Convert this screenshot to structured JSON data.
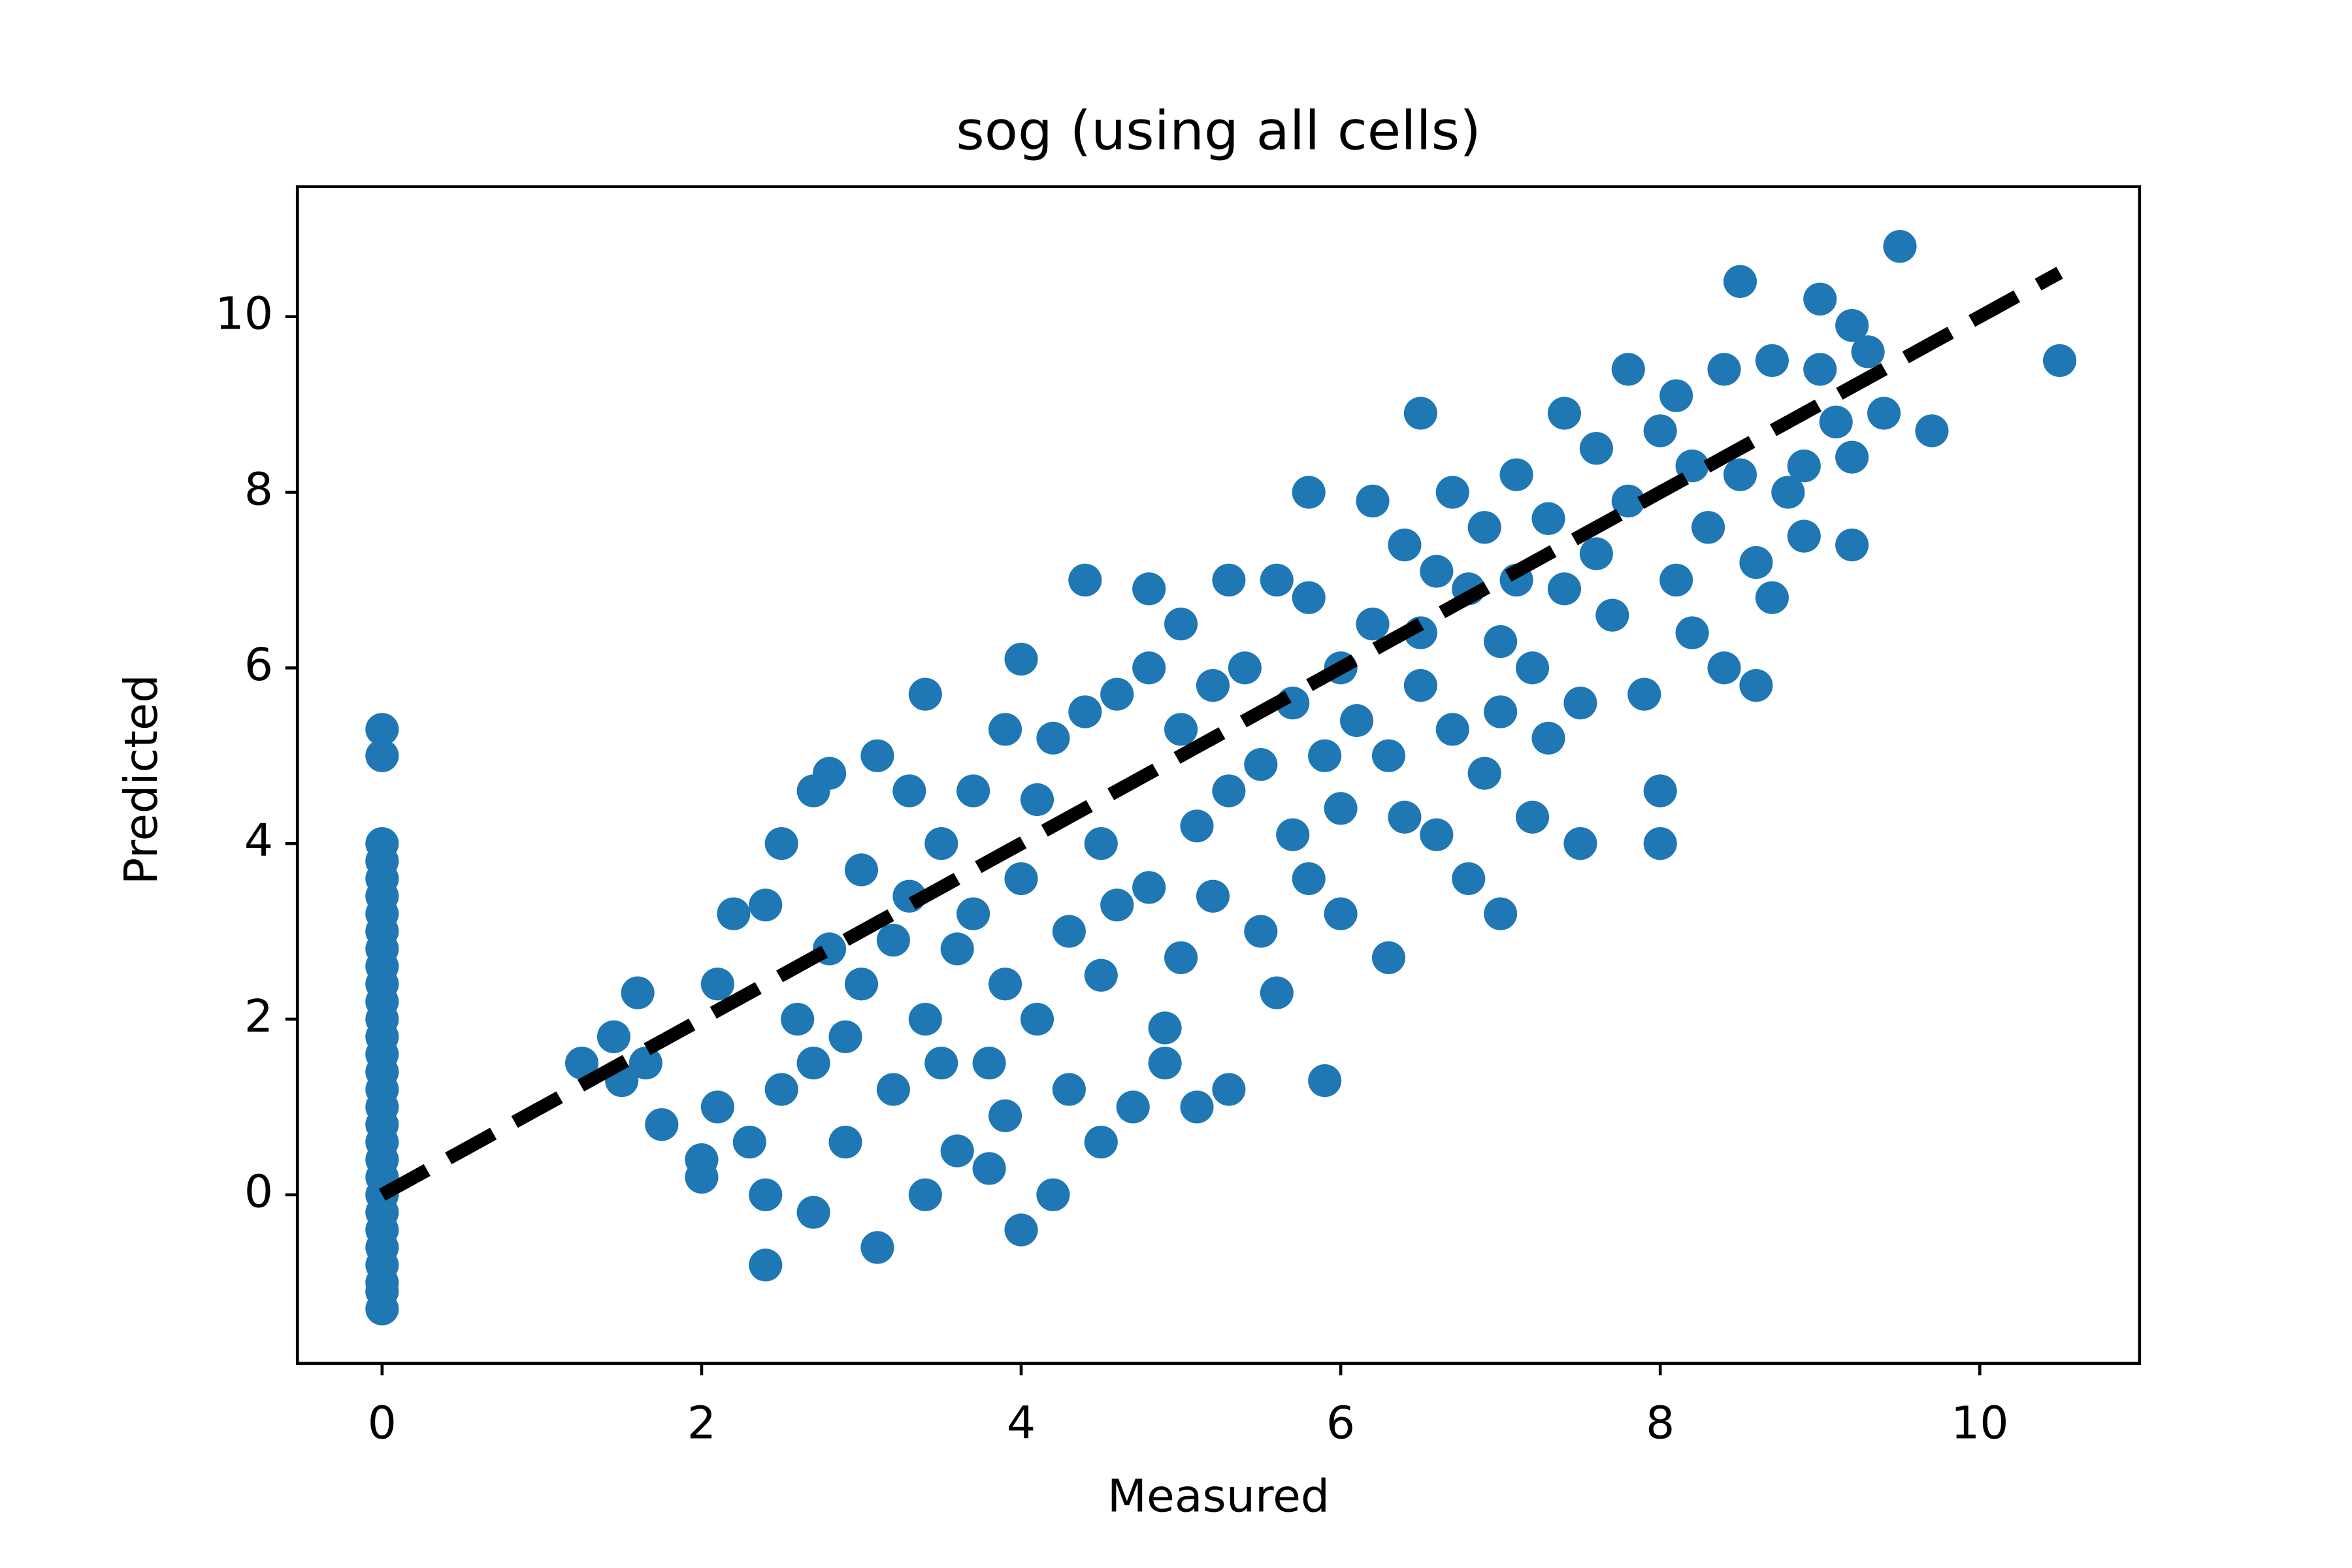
{
  "chart_data": {
    "type": "scatter",
    "title": "sog (using all cells)",
    "x_label": "Measured",
    "y_label": "Predicted",
    "color": "#1f77b4",
    "x": [
      0,
      0,
      0,
      0,
      0,
      0,
      0,
      0,
      0,
      0,
      0,
      0,
      0,
      0,
      0,
      0,
      0,
      0,
      0,
      0,
      0,
      0,
      0,
      0,
      0,
      0,
      0,
      0,
      0,
      0,
      1.25,
      1.45,
      1.5,
      1.6,
      1.65,
      1.75,
      2.0,
      2.0,
      2.1,
      2.2,
      2.1,
      2.3,
      2.4,
      2.4,
      2.5,
      2.5,
      2.4,
      2.6,
      2.7,
      2.7,
      2.7,
      2.8,
      2.8,
      2.9,
      2.9,
      3.0,
      3.0,
      3.1,
      3.1,
      3.2,
      3.2,
      3.3,
      3.3,
      3.4,
      3.4,
      3.4,
      3.5,
      3.5,
      3.6,
      3.6,
      3.7,
      3.7,
      3.8,
      3.8,
      3.9,
      3.9,
      3.9,
      4.0,
      4.0,
      4.0,
      4.1,
      4.1,
      4.2,
      4.2,
      4.3,
      4.3,
      4.4,
      4.4,
      4.5,
      4.5,
      4.5,
      4.6,
      4.6,
      4.7,
      4.8,
      4.8,
      4.8,
      4.9,
      4.9,
      5.0,
      5.0,
      5.0,
      5.1,
      5.1,
      5.2,
      5.2,
      5.3,
      5.3,
      5.3,
      5.4,
      5.5,
      5.5,
      5.6,
      5.6,
      5.7,
      5.7,
      5.8,
      5.8,
      5.8,
      5.9,
      5.9,
      6.0,
      6.0,
      6.0,
      6.1,
      6.2,
      6.2,
      6.3,
      6.3,
      6.4,
      6.4,
      6.5,
      6.5,
      6.5,
      6.6,
      6.6,
      6.7,
      6.7,
      6.8,
      6.8,
      6.9,
      6.9,
      7.0,
      7.0,
      7.0,
      7.1,
      7.1,
      7.2,
      7.2,
      7.3,
      7.3,
      7.4,
      7.4,
      7.5,
      7.5,
      7.6,
      7.6,
      7.7,
      7.8,
      7.8,
      7.9,
      8.0,
      8.0,
      8.0,
      8.1,
      8.1,
      8.2,
      8.2,
      8.3,
      8.4,
      8.4,
      8.5,
      8.5,
      8.6,
      8.6,
      8.7,
      8.7,
      8.8,
      8.9,
      8.9,
      9.0,
      9.0,
      9.1,
      9.2,
      9.2,
      9.2,
      9.3,
      9.4,
      9.5,
      9.7,
      10.5
    ],
    "values": [
      -1.3,
      -1.1,
      -1.0,
      -0.8,
      -0.6,
      -0.4,
      -0.2,
      0,
      0.2,
      0.4,
      0.6,
      0.8,
      1.0,
      1.2,
      1.4,
      1.6,
      1.8,
      2.0,
      2.2,
      2.4,
      2.6,
      2.8,
      3.0,
      3.2,
      3.4,
      3.6,
      3.8,
      4.0,
      5.0,
      5.3,
      1.5,
      1.8,
      1.3,
      2.3,
      1.5,
      0.8,
      0.4,
      0.2,
      1.0,
      3.2,
      2.4,
      0.6,
      -0.8,
      0.0,
      1.2,
      4.0,
      3.3,
      2.0,
      -0.2,
      1.5,
      4.6,
      4.8,
      2.8,
      0.6,
      1.8,
      2.4,
      3.7,
      -0.6,
      5.0,
      2.9,
      1.2,
      4.6,
      3.4,
      5.7,
      0.0,
      2.0,
      1.5,
      4.0,
      0.5,
      2.8,
      4.6,
      3.2,
      0.3,
      1.5,
      5.3,
      2.4,
      0.9,
      3.6,
      6.1,
      -0.4,
      2.0,
      4.5,
      5.2,
      0.0,
      3.0,
      1.2,
      5.5,
      7.0,
      4.0,
      2.5,
      0.6,
      5.7,
      3.3,
      1.0,
      6.0,
      6.9,
      3.5,
      1.9,
      1.5,
      5.3,
      6.5,
      2.7,
      4.2,
      1.0,
      5.8,
      3.4,
      7.0,
      4.6,
      1.2,
      6.0,
      3.0,
      4.9,
      2.3,
      7.0,
      5.6,
      4.1,
      6.8,
      3.6,
      8.0,
      5.0,
      1.3,
      3.2,
      4.4,
      6.0,
      5.4,
      7.9,
      6.5,
      2.7,
      5.0,
      7.4,
      4.3,
      6.4,
      5.8,
      8.9,
      4.1,
      7.1,
      8.0,
      5.3,
      3.6,
      6.9,
      7.6,
      4.8,
      6.3,
      5.5,
      3.2,
      8.2,
      7.0,
      4.3,
      6.0,
      7.7,
      5.2,
      8.9,
      6.9,
      4.0,
      5.6,
      7.3,
      8.5,
      6.6,
      9.4,
      7.9,
      5.7,
      8.7,
      4.6,
      4.0,
      7.0,
      9.1,
      6.4,
      8.3,
      7.6,
      9.4,
      6.0,
      10.4,
      8.2,
      5.8,
      7.2,
      9.5,
      6.8,
      8.0,
      8.3,
      7.5,
      10.2,
      9.4,
      8.8,
      9.9,
      7.4,
      8.4,
      9.6,
      8.9,
      10.8,
      8.7,
      9.5
    ],
    "reference_line": {
      "x": [
        0,
        10.5
      ],
      "values": [
        0,
        10.5
      ],
      "color": "#000000",
      "style": "dashed"
    },
    "xlim": [
      -0.53,
      11.0
    ],
    "ylim": [
      -1.92,
      11.48
    ],
    "xticks": [
      0,
      2,
      4,
      6,
      8,
      10
    ],
    "yticks": [
      0,
      2,
      4,
      6,
      8,
      10
    ],
    "grid": false
  }
}
